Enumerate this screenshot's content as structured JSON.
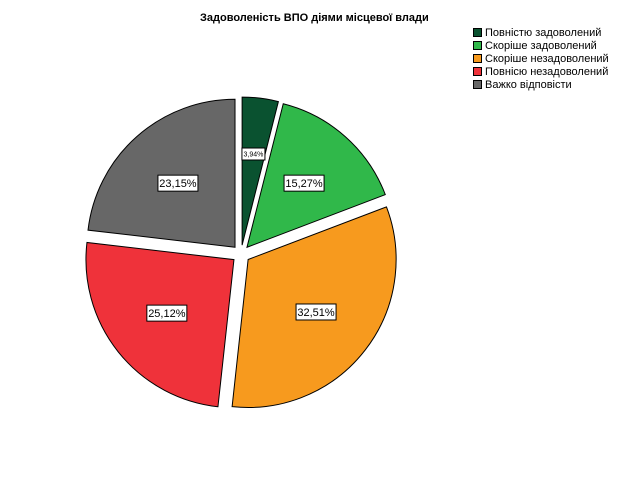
{
  "chart_data": {
    "type": "pie",
    "title": "Задоволеність ВПО діями місцевої влади",
    "legend_position": "top-right",
    "slices": [
      {
        "label": "Повністю задоволений",
        "value": 3.94,
        "display": "3,94%",
        "color": "#0a5230"
      },
      {
        "label": "Скоріше задоволений",
        "value": 15.27,
        "display": "15,27%",
        "color": "#30b84a"
      },
      {
        "label": "Скоріше незадоволений",
        "value": 32.51,
        "display": "32,51%",
        "color": "#f79a1e"
      },
      {
        "label": "Повнісю незадоволений",
        "value": 25.12,
        "display": "25,12%",
        "color": "#ef323a"
      },
      {
        "label": "Важко відповісти",
        "value": 23.15,
        "display": "23,15%",
        "color": "#676767"
      }
    ]
  }
}
